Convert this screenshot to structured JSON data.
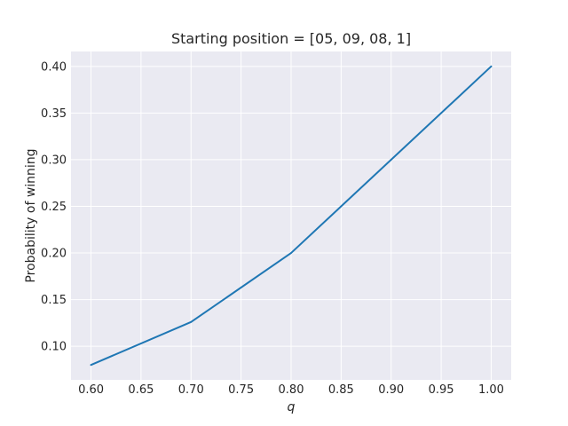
{
  "chart_data": {
    "type": "line",
    "title": "Starting position = [05, 09, 08, 1]",
    "xlabel": "q",
    "ylabel": "Probability of winning",
    "x": [
      0.6,
      0.7,
      0.8,
      1.0
    ],
    "series": [
      {
        "values": [
          0.08,
          0.126,
          0.2,
          0.4
        ],
        "color": "#1f77b4"
      }
    ],
    "xlim": [
      0.58,
      1.02
    ],
    "ylim": [
      0.064,
      0.416
    ],
    "xticks": [
      "0.60",
      "0.65",
      "0.70",
      "0.75",
      "0.80",
      "0.85",
      "0.90",
      "0.95",
      "1.00"
    ],
    "yticks": [
      "0.10",
      "0.15",
      "0.20",
      "0.25",
      "0.30",
      "0.35",
      "0.40"
    ],
    "grid": true,
    "legend": false,
    "background": "#eaeaf2"
  }
}
